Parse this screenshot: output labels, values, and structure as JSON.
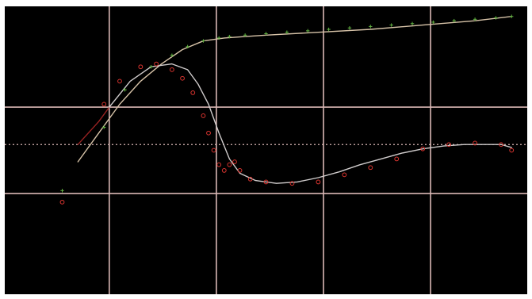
{
  "chart_data": {
    "type": "scatter",
    "title": "",
    "xlabel": "",
    "ylabel": "",
    "xlim": [
      0,
      1
    ],
    "ylim": [
      0,
      1
    ],
    "grid": true,
    "legend": "none",
    "colors": {
      "background": "#000000",
      "frame": "#ffffff",
      "grid": "#d9b7b5",
      "reference_line": "#d9b7b5",
      "series_green": "#62b342",
      "series_red": "#d9342f",
      "fit_green": "#d7c3a8",
      "fit_red": "#d0cccc",
      "fit_red_start": "#9b2323"
    },
    "grid_lines_x": [
      0.2,
      0.405,
      0.61,
      0.815
    ],
    "grid_lines_y": [
      0.65,
      0.35
    ],
    "reference_line_y": 0.52,
    "series": [
      {
        "marker": "plus",
        "color": "#62b342",
        "x": [
          0.11,
          0.19,
          0.23,
          0.28,
          0.32,
          0.35,
          0.38,
          0.41,
          0.43,
          0.46,
          0.5,
          0.54,
          0.58,
          0.62,
          0.66,
          0.7,
          0.74,
          0.78,
          0.82,
          0.86,
          0.9,
          0.94,
          0.97
        ],
        "y": [
          0.36,
          0.58,
          0.71,
          0.79,
          0.83,
          0.86,
          0.88,
          0.89,
          0.895,
          0.9,
          0.905,
          0.91,
          0.915,
          0.92,
          0.925,
          0.93,
          0.935,
          0.94,
          0.945,
          0.95,
          0.955,
          0.96,
          0.965
        ]
      },
      {
        "marker": "circle",
        "color": "#d9342f",
        "x": [
          0.11,
          0.19,
          0.22,
          0.26,
          0.29,
          0.32,
          0.34,
          0.36,
          0.38,
          0.39,
          0.4,
          0.41,
          0.42,
          0.43,
          0.44,
          0.45,
          0.47,
          0.5,
          0.55,
          0.6,
          0.65,
          0.7,
          0.75,
          0.8,
          0.85,
          0.9,
          0.95,
          0.97
        ],
        "y": [
          0.32,
          0.66,
          0.74,
          0.79,
          0.8,
          0.78,
          0.75,
          0.7,
          0.62,
          0.56,
          0.5,
          0.45,
          0.43,
          0.45,
          0.46,
          0.43,
          0.4,
          0.39,
          0.385,
          0.39,
          0.415,
          0.44,
          0.47,
          0.505,
          0.52,
          0.525,
          0.52,
          0.5
        ]
      }
    ],
    "fit_lines": [
      {
        "color": "#d7c3a8",
        "x": [
          0.14,
          0.18,
          0.22,
          0.26,
          0.3,
          0.34,
          0.38,
          0.42,
          0.46,
          0.5,
          0.6,
          0.7,
          0.8,
          0.9,
          0.97
        ],
        "y": [
          0.46,
          0.56,
          0.66,
          0.74,
          0.8,
          0.85,
          0.88,
          0.89,
          0.895,
          0.9,
          0.91,
          0.92,
          0.935,
          0.95,
          0.965
        ]
      },
      {
        "color": "#9b2323",
        "x": [
          0.14,
          0.18,
          0.2
        ],
        "y": [
          0.52,
          0.6,
          0.65
        ]
      },
      {
        "color": "#d0cccc",
        "x": [
          0.2,
          0.24,
          0.28,
          0.32,
          0.35,
          0.37,
          0.39,
          0.41,
          0.43,
          0.45,
          0.48,
          0.52,
          0.56,
          0.6,
          0.64,
          0.68,
          0.72,
          0.76,
          0.8,
          0.84,
          0.88,
          0.92,
          0.95,
          0.97
        ],
        "y": [
          0.65,
          0.74,
          0.79,
          0.8,
          0.78,
          0.73,
          0.66,
          0.56,
          0.47,
          0.42,
          0.395,
          0.385,
          0.39,
          0.405,
          0.425,
          0.45,
          0.47,
          0.49,
          0.505,
          0.515,
          0.52,
          0.52,
          0.52,
          0.51
        ]
      }
    ]
  }
}
